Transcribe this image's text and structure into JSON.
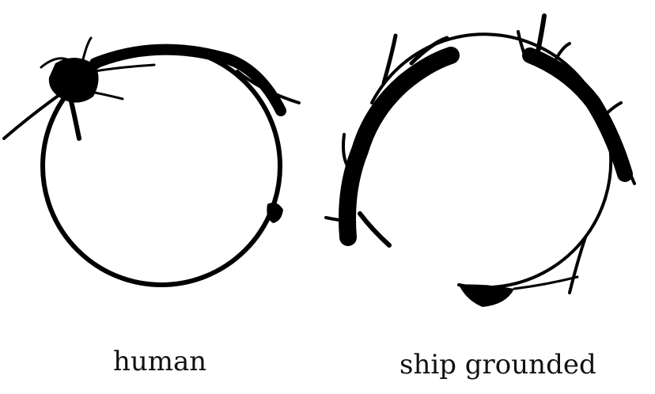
{
  "logograms": [
    {
      "id": "human",
      "caption": "human"
    },
    {
      "id": "ship",
      "caption": "ship grounded"
    }
  ],
  "colors": {
    "ink": "#000000",
    "background": "#ffffff"
  }
}
